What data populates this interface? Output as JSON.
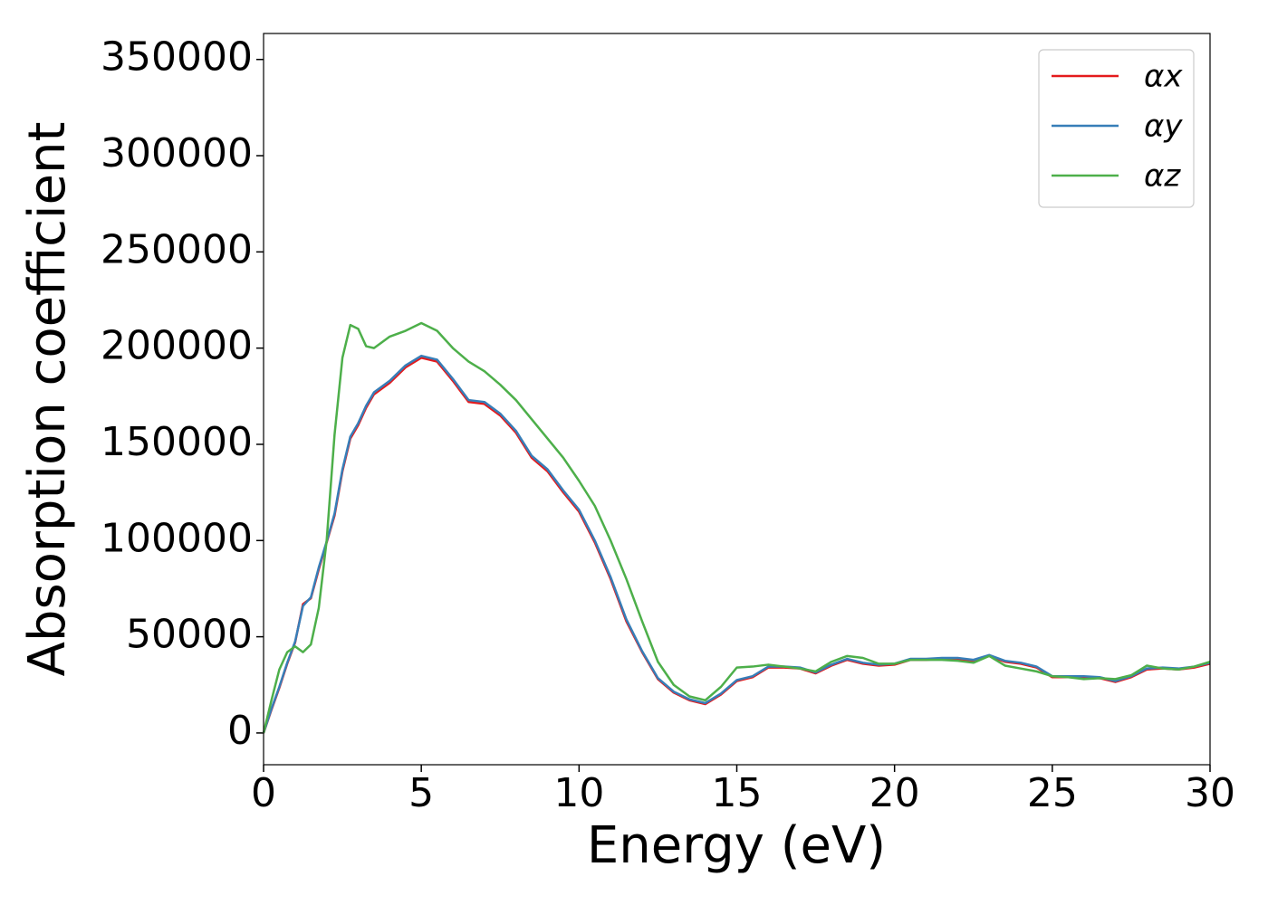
{
  "chart_data": {
    "type": "line",
    "xlabel": "Energy (eV)",
    "ylabel": "Absorption coefficient",
    "x": [
      0,
      0.25,
      0.5,
      0.75,
      1,
      1.25,
      1.5,
      1.75,
      2,
      2.25,
      2.5,
      2.75,
      3,
      3.25,
      3.5,
      4,
      4.5,
      5,
      5.5,
      6,
      6.5,
      7,
      7.5,
      8,
      8.5,
      9,
      9.5,
      10,
      10.5,
      11,
      11.5,
      12,
      12.5,
      13,
      13.5,
      14,
      14.5,
      15,
      15.5,
      16,
      16.5,
      17,
      17.5,
      18,
      18.5,
      19,
      19.5,
      20,
      20.5,
      21,
      21.5,
      22,
      22.5,
      23,
      23.5,
      24,
      24.5,
      25,
      25.5,
      26,
      26.5,
      27,
      27.5,
      28,
      28.5,
      29,
      29.5,
      30
    ],
    "series": [
      {
        "name": "αx",
        "color": "#e41a1c",
        "values": [
          0,
          12000,
          23500,
          36000,
          47000,
          67000,
          70000,
          85000,
          99000,
          113000,
          136000,
          153000,
          160000,
          169000,
          176000,
          182000,
          190000,
          195000,
          193000,
          183000,
          172000,
          171000,
          165000,
          156000,
          143000,
          136000,
          125000,
          115000,
          99000,
          80000,
          58000,
          42000,
          28000,
          21000,
          17000,
          15000,
          20000,
          27000,
          29000,
          34000,
          34000,
          33500,
          31000,
          35000,
          38000,
          36000,
          35000,
          35500,
          38000,
          38000,
          38500,
          38500,
          37500,
          40000,
          37000,
          36000,
          34000,
          29000,
          29000,
          29000,
          28500,
          26500,
          29000,
          33000,
          33500,
          33000,
          34000,
          36000
        ]
      },
      {
        "name": "αy",
        "color": "#377eb8",
        "values": [
          0,
          12500,
          24000,
          36500,
          47500,
          66000,
          70500,
          86000,
          99500,
          114000,
          137000,
          154000,
          161000,
          170000,
          177000,
          183000,
          191000,
          196000,
          194000,
          184000,
          173000,
          172000,
          166000,
          157000,
          144000,
          137000,
          126000,
          116000,
          100000,
          81000,
          59000,
          42500,
          28500,
          21500,
          17500,
          15500,
          20500,
          27500,
          29500,
          34500,
          34500,
          34000,
          31500,
          35500,
          38500,
          36500,
          35500,
          36000,
          38500,
          38500,
          39000,
          39000,
          38000,
          40500,
          37500,
          36500,
          34500,
          29500,
          29500,
          29500,
          29000,
          27000,
          29500,
          33500,
          34000,
          33500,
          34500,
          36500
        ]
      },
      {
        "name": "αz",
        "color": "#4daf4a",
        "values": [
          0,
          17000,
          33000,
          42000,
          45000,
          42000,
          46000,
          65000,
          100000,
          155000,
          195000,
          212000,
          210000,
          201000,
          200000,
          206000,
          209000,
          213000,
          209000,
          200000,
          193000,
          188000,
          181000,
          173000,
          163000,
          153000,
          143000,
          131000,
          118000,
          100000,
          80000,
          58000,
          37000,
          25000,
          19000,
          17000,
          24000,
          34000,
          34500,
          35500,
          34500,
          33500,
          32000,
          37000,
          40000,
          39000,
          36000,
          36000,
          38000,
          38000,
          38000,
          37500,
          36500,
          40000,
          35000,
          33500,
          32000,
          29500,
          29000,
          28000,
          28500,
          28000,
          30000,
          35000,
          33500,
          33000,
          34500,
          37000
        ]
      }
    ],
    "xlim": [
      0,
      30
    ],
    "xticks": [
      0,
      5,
      10,
      15,
      20,
      25,
      30
    ],
    "ylim": [
      -16500,
      363500
    ],
    "yticks": [
      0,
      50000,
      100000,
      150000,
      200000,
      250000,
      300000,
      350000
    ],
    "legend": "upper right"
  }
}
